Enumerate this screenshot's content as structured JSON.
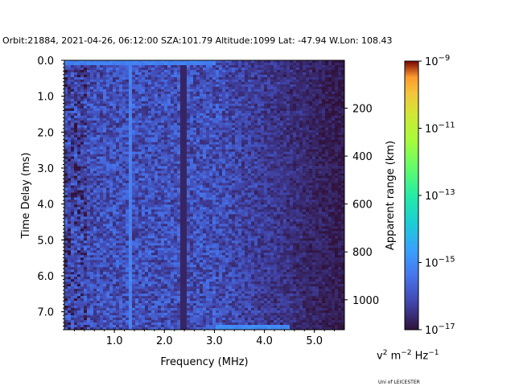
{
  "header": {
    "title": "Orbit:21884, 2021-04-26, 06:12:00 SZA:101.79 Altitude:1099 Lat: -47.94 W.Lon: 108.43"
  },
  "footer": {
    "credit": "Uni of LEICESTER"
  },
  "colorbar": {
    "units_base": "v",
    "units_pow1": "2",
    "units_mid": " m",
    "units_pow2": "−2",
    "units_end": " Hz",
    "units_pow3": "−1",
    "ticks": [
      {
        "base": "10",
        "exp": "−9",
        "value_exp": -9
      },
      {
        "base": "10",
        "exp": "−11",
        "value_exp": -11
      },
      {
        "base": "10",
        "exp": "−13",
        "value_exp": -13
      },
      {
        "base": "10",
        "exp": "−15",
        "value_exp": -15
      },
      {
        "base": "10",
        "exp": "−17",
        "value_exp": -17
      }
    ],
    "range_exp": [
      -17,
      -9
    ]
  },
  "chart_data": {
    "type": "heatmap",
    "title": "Orbit:21884, 2021-04-26, 06:12:00 SZA:101.79 Altitude:1099 Lat: -47.94 W.Lon: 108.43",
    "xlabel": "Frequency (MHz)",
    "ylabel": "Time Delay (ms)",
    "y2label": "Apparent range (km)",
    "xlim": [
      0.0,
      5.6
    ],
    "ylim": [
      7.5,
      0.0
    ],
    "y2lim": [
      0,
      1125
    ],
    "xticks": [
      {
        "value": 1.0,
        "label": "1.0"
      },
      {
        "value": 2.0,
        "label": "2.0"
      },
      {
        "value": 3.0,
        "label": "3.0"
      },
      {
        "value": 4.0,
        "label": "4.0"
      },
      {
        "value": 5.0,
        "label": "5.0"
      }
    ],
    "yticks": [
      {
        "value": 0.0,
        "label": "0.0"
      },
      {
        "value": 1.0,
        "label": "1.0"
      },
      {
        "value": 2.0,
        "label": "2.0"
      },
      {
        "value": 3.0,
        "label": "3.0"
      },
      {
        "value": 4.0,
        "label": "4.0"
      },
      {
        "value": 5.0,
        "label": "5.0"
      },
      {
        "value": 6.0,
        "label": "6.0"
      },
      {
        "value": 7.0,
        "label": "7.0"
      }
    ],
    "y2ticks": [
      {
        "value": 200,
        "label": "200"
      },
      {
        "value": 400,
        "label": "400"
      },
      {
        "value": 600,
        "label": "600"
      },
      {
        "value": 800,
        "label": "800"
      },
      {
        "value": 1000,
        "label": "1000"
      }
    ],
    "colorscale": "turbo",
    "log_range": [
      -17,
      -9
    ],
    "features": {
      "noise_floor_log": -16.0,
      "rolloff_start_mhz": 3.0,
      "rolloff_end_mhz": 5.6,
      "rolloff_floor_log": -16.9,
      "bright_bands_mhz": [
        1.32
      ],
      "dark_bands_mhz": [
        2.38
      ],
      "top_row_log": -15.2,
      "bottom_row_log": -15.0,
      "low_freq_edge_mhz": 0.45
    }
  }
}
